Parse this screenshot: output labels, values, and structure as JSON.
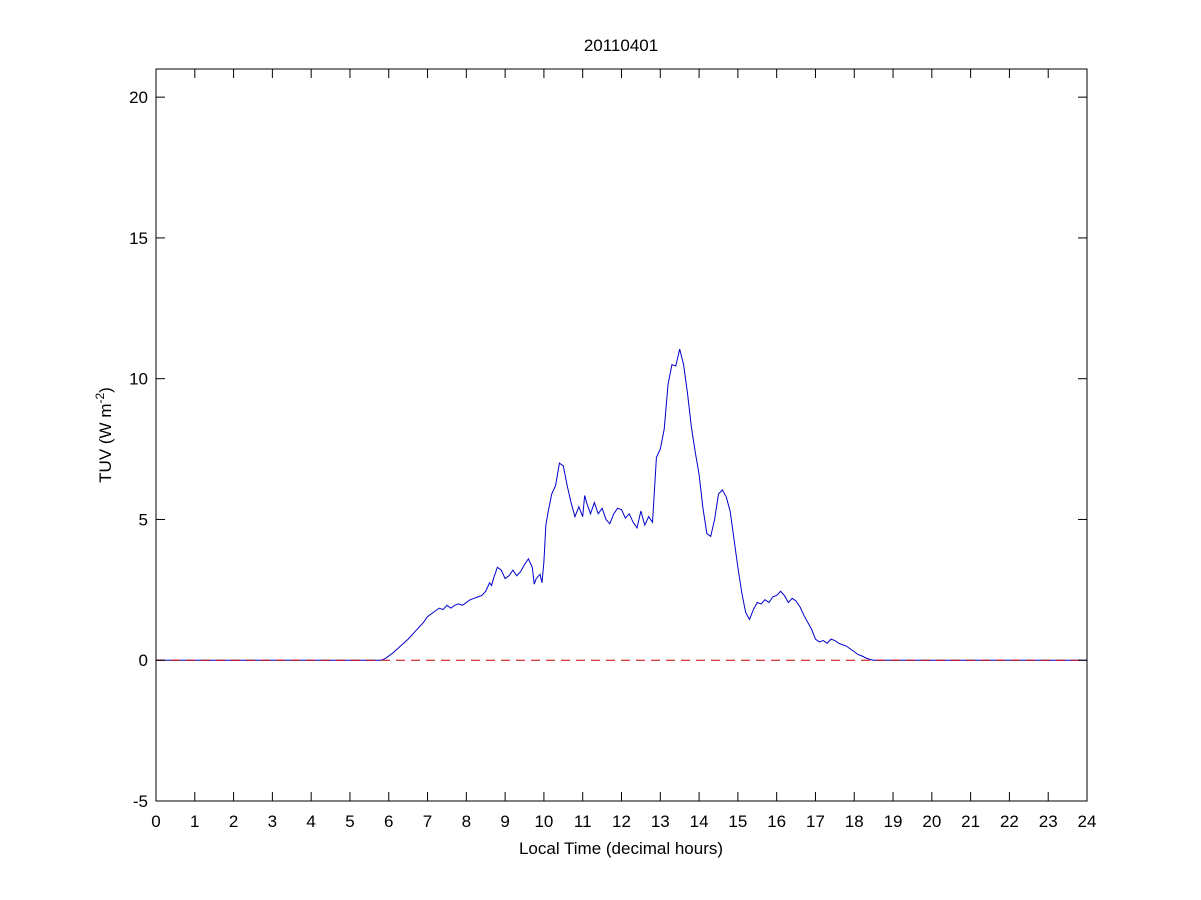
{
  "chart_data": {
    "type": "line",
    "title": "20110401",
    "xlabel": "Local Time (decimal hours)",
    "ylabel_main": "TUV (W m",
    "ylabel_sup": "-2",
    "ylabel_close": ")",
    "xlim": [
      0,
      24
    ],
    "ylim": [
      -5,
      21
    ],
    "xticks": [
      0,
      1,
      2,
      3,
      4,
      5,
      6,
      7,
      8,
      9,
      10,
      11,
      12,
      13,
      14,
      15,
      16,
      17,
      18,
      19,
      20,
      21,
      22,
      23,
      24
    ],
    "yticks": [
      -5,
      0,
      5,
      10,
      15,
      20
    ],
    "grid": false,
    "series": [
      {
        "color": "#0000cc",
        "style": "solid",
        "x": [
          0,
          5.8,
          5.9,
          6.1,
          6.3,
          6.5,
          6.7,
          6.9,
          7.0,
          7.15,
          7.3,
          7.4,
          7.5,
          7.6,
          7.7,
          7.8,
          7.9,
          8.0,
          8.1,
          8.2,
          8.3,
          8.4,
          8.5,
          8.6,
          8.65,
          8.7,
          8.8,
          8.9,
          9.0,
          9.1,
          9.2,
          9.3,
          9.4,
          9.5,
          9.6,
          9.7,
          9.75,
          9.8,
          9.9,
          9.95,
          10.0,
          10.05,
          10.1,
          10.2,
          10.3,
          10.4,
          10.5,
          10.6,
          10.7,
          10.8,
          10.9,
          11.0,
          11.05,
          11.1,
          11.2,
          11.3,
          11.4,
          11.5,
          11.6,
          11.7,
          11.8,
          11.9,
          12.0,
          12.1,
          12.2,
          12.3,
          12.4,
          12.5,
          12.6,
          12.7,
          12.8,
          12.9,
          13.0,
          13.1,
          13.2,
          13.3,
          13.4,
          13.5,
          13.6,
          13.7,
          13.8,
          13.9,
          14.0,
          14.1,
          14.2,
          14.3,
          14.4,
          14.5,
          14.6,
          14.7,
          14.8,
          14.9,
          15.0,
          15.1,
          15.2,
          15.3,
          15.4,
          15.5,
          15.6,
          15.7,
          15.8,
          15.9,
          16.0,
          16.1,
          16.2,
          16.3,
          16.4,
          16.5,
          16.6,
          16.7,
          16.8,
          16.9,
          17.0,
          17.1,
          17.2,
          17.3,
          17.4,
          17.5,
          17.6,
          17.7,
          17.8,
          17.9,
          18.0,
          18.1,
          18.2,
          18.3,
          18.4,
          18.5,
          18.6,
          18.7,
          24
        ],
        "y": [
          0,
          0,
          0.05,
          0.25,
          0.5,
          0.75,
          1.05,
          1.35,
          1.55,
          1.7,
          1.85,
          1.8,
          1.95,
          1.85,
          1.95,
          2.0,
          1.95,
          2.05,
          2.15,
          2.2,
          2.25,
          2.3,
          2.45,
          2.75,
          2.65,
          2.9,
          3.3,
          3.2,
          2.9,
          3.0,
          3.2,
          3.0,
          3.15,
          3.4,
          3.6,
          3.3,
          2.7,
          2.9,
          3.05,
          2.75,
          3.5,
          4.8,
          5.2,
          5.9,
          6.2,
          7.0,
          6.9,
          6.2,
          5.6,
          5.1,
          5.45,
          5.1,
          5.85,
          5.6,
          5.2,
          5.6,
          5.2,
          5.4,
          5.0,
          4.85,
          5.2,
          5.4,
          5.35,
          5.05,
          5.2,
          4.9,
          4.7,
          5.3,
          4.8,
          5.1,
          4.9,
          7.2,
          7.5,
          8.2,
          9.8,
          10.5,
          10.45,
          11.05,
          10.5,
          9.5,
          8.3,
          7.4,
          6.6,
          5.4,
          4.5,
          4.4,
          5.0,
          5.9,
          6.05,
          5.8,
          5.3,
          4.3,
          3.3,
          2.4,
          1.7,
          1.45,
          1.8,
          2.05,
          2.0,
          2.15,
          2.05,
          2.25,
          2.3,
          2.45,
          2.3,
          2.05,
          2.2,
          2.1,
          1.9,
          1.6,
          1.35,
          1.1,
          0.75,
          0.65,
          0.7,
          0.6,
          0.75,
          0.7,
          0.6,
          0.55,
          0.5,
          0.4,
          0.3,
          0.2,
          0.15,
          0.08,
          0.03,
          0,
          0,
          0,
          0
        ]
      },
      {
        "color": "#cc0000",
        "style": "dashed",
        "x": [
          0,
          24
        ],
        "y": [
          0,
          0
        ]
      }
    ]
  }
}
